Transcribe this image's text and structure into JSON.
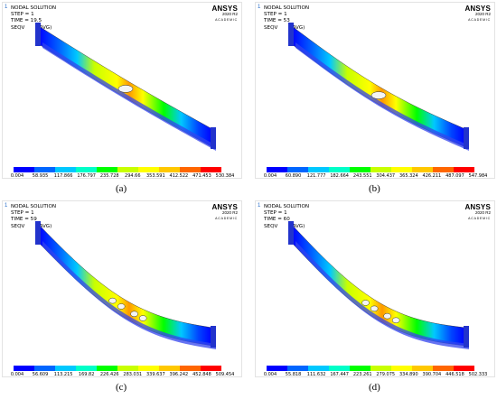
{
  "panels": [
    {
      "letter": "a",
      "header": {
        "title": "NODAL SOLUTION",
        "step": "STEP = 1",
        "time": "TIME = 19.5",
        "quantity": "SEQV",
        "avg": "(AVG)"
      },
      "ticks": [
        "0.004",
        "58.935",
        "117.866",
        "176.797",
        "235.728",
        "294.66",
        "353.591",
        "412.522",
        "471.453",
        "530.384"
      ],
      "sag": 0.02,
      "holes": 1
    },
    {
      "letter": "b",
      "header": {
        "title": "NODAL SOLUTION",
        "step": "STEP = 1",
        "time": "TIME = 53",
        "quantity": "SEQV",
        "avg": "(AVG)"
      },
      "ticks": [
        "0.004",
        "60.890",
        "121.777",
        "182.664",
        "243.551",
        "304.437",
        "365.324",
        "426.211",
        "487.097",
        "547.984"
      ],
      "sag": 0.08,
      "holes": 1
    },
    {
      "letter": "c",
      "header": {
        "title": "NODAL SOLUTION",
        "step": "STEP = 1",
        "time": "TIME = 59",
        "quantity": "SEQV",
        "avg": "(AVG)"
      },
      "ticks": [
        "0.004",
        "56.609",
        "113.215",
        "169.82",
        "226.426",
        "283.031",
        "339.637",
        "396.242",
        "452.848",
        "509.454"
      ],
      "sag": 0.22,
      "holes": 4
    },
    {
      "letter": "d",
      "header": {
        "title": "NODAL SOLUTION",
        "step": "STEP = 1",
        "time": "TIME = 60",
        "quantity": "SEQV",
        "avg": "(AVG)"
      },
      "ticks": [
        "0.004",
        "55.818",
        "111.632",
        "167.447",
        "223.261",
        "279.075",
        "334.890",
        "390.704",
        "446.518",
        "502.333"
      ],
      "sag": 0.24,
      "holes": 4
    }
  ],
  "logo": {
    "name": "ANSYS",
    "release": "2020 R2",
    "edition": "ACADEMIC"
  },
  "colormap": [
    "#0000ff",
    "#0066ff",
    "#00c8ff",
    "#00ffc8",
    "#00ff00",
    "#c8ff00",
    "#ffff00",
    "#ffc800",
    "#ff6600",
    "#ff0000"
  ],
  "captions": [
    "(a)",
    "(b)",
    "(c)",
    "(d)"
  ]
}
